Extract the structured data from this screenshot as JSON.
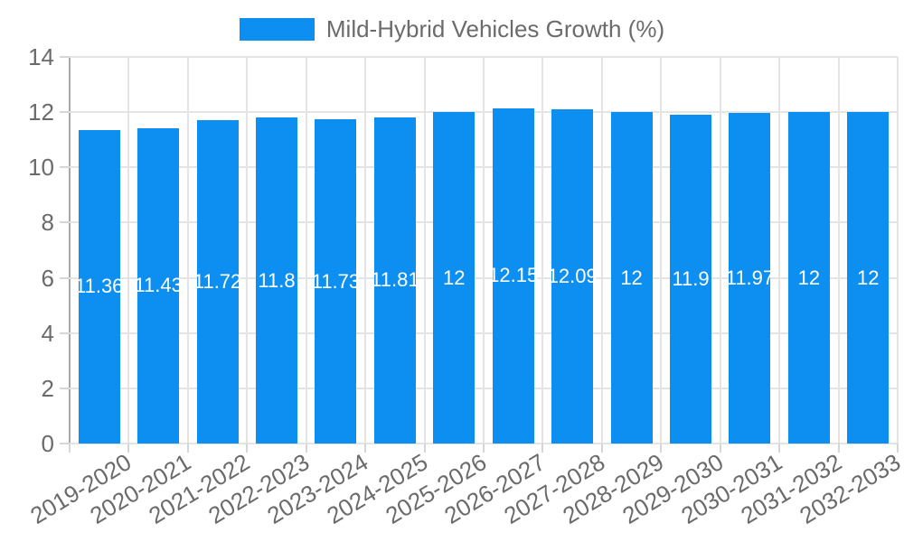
{
  "legend": {
    "label": "Mild-Hybrid Vehicles Growth (%)"
  },
  "colors": {
    "bar": "#0d8ff2",
    "grid": "#e4e4e4",
    "axis": "#a8a8a8",
    "tick_mark": "#d6d6d6",
    "text": "#6b6b6b",
    "value_label": "#ffffff",
    "background": "#ffffff"
  },
  "chart_data": {
    "type": "bar",
    "title": "Mild-Hybrid Vehicles Growth (%)",
    "categories": [
      "2019-2020",
      "2020-2021",
      "2021-2022",
      "2022-2023",
      "2023-2024",
      "2024-2025",
      "2025-2026",
      "2026-2027",
      "2027-2028",
      "2028-2029",
      "2029-2030",
      "2030-2031",
      "2031-2032",
      "2032-2033"
    ],
    "values": [
      11.36,
      11.43,
      11.72,
      11.8,
      11.73,
      11.81,
      12,
      12.15,
      12.09,
      12,
      11.9,
      11.97,
      12,
      12
    ],
    "value_labels": [
      "11.36",
      "11.43",
      "11.72",
      "11.8",
      "11.73",
      "11.81",
      "12",
      "12.15",
      "12.09",
      "12",
      "11.9",
      "11.97",
      "12",
      "12"
    ],
    "xlabel": "",
    "ylabel": "",
    "ylim": [
      0,
      14
    ],
    "yticks": [
      0,
      2,
      4,
      6,
      8,
      10,
      12,
      14
    ],
    "grid": true,
    "legend_position": "top",
    "value_labels_position": "center",
    "x_label_rotation_deg": -31
  }
}
